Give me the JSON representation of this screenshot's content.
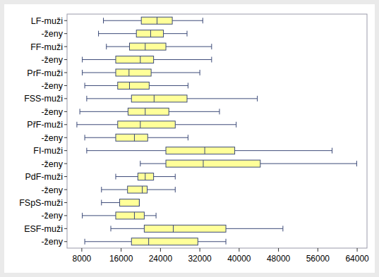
{
  "chart_data": {
    "type": "box",
    "orientation": "horizontal",
    "categories": [
      "LF-muži",
      "-ženy",
      "FF-muži",
      "-ženy",
      "PrF-muži",
      "-ženy",
      "FSS-muži",
      "-ženy",
      "PřF-muži",
      "-ženy",
      "FI-muži",
      "-ženy",
      "PdF-muži",
      "-ženy",
      "FSpS-muži",
      "-ženy",
      "ESF-muži",
      "-ženy"
    ],
    "min": [
      12400,
      11400,
      13000,
      8100,
      8100,
      8600,
      9000,
      7600,
      7000,
      8600,
      9000,
      19900,
      14900,
      12000,
      12000,
      8100,
      13900,
      8600
    ],
    "q1": [
      20100,
      19100,
      17700,
      14900,
      14900,
      15300,
      18100,
      17400,
      15300,
      14900,
      25100,
      25100,
      19400,
      17300,
      15700,
      14900,
      20700,
      18100
    ],
    "median": [
      23300,
      22000,
      20900,
      19900,
      17600,
      17700,
      22700,
      20900,
      19900,
      18700,
      33000,
      32700,
      20900,
      20300,
      19700,
      18700,
      26600,
      21600
    ],
    "q3": [
      26400,
      24600,
      25100,
      22600,
      22100,
      21700,
      29400,
      25700,
      27000,
      21400,
      39100,
      44300,
      22600,
      21300,
      19700,
      20700,
      37300,
      31600
    ],
    "max": [
      32600,
      29400,
      34400,
      34400,
      32000,
      29600,
      43700,
      36000,
      39400,
      29600,
      58900,
      63900,
      27000,
      27000,
      19700,
      23100,
      48900,
      37300
    ],
    "color": "#ffff99",
    "xlim": [
      5000,
      66000
    ],
    "xticks": [
      8000,
      16000,
      24000,
      32000,
      40000,
      48000,
      56000,
      64000
    ],
    "grid": false
  }
}
